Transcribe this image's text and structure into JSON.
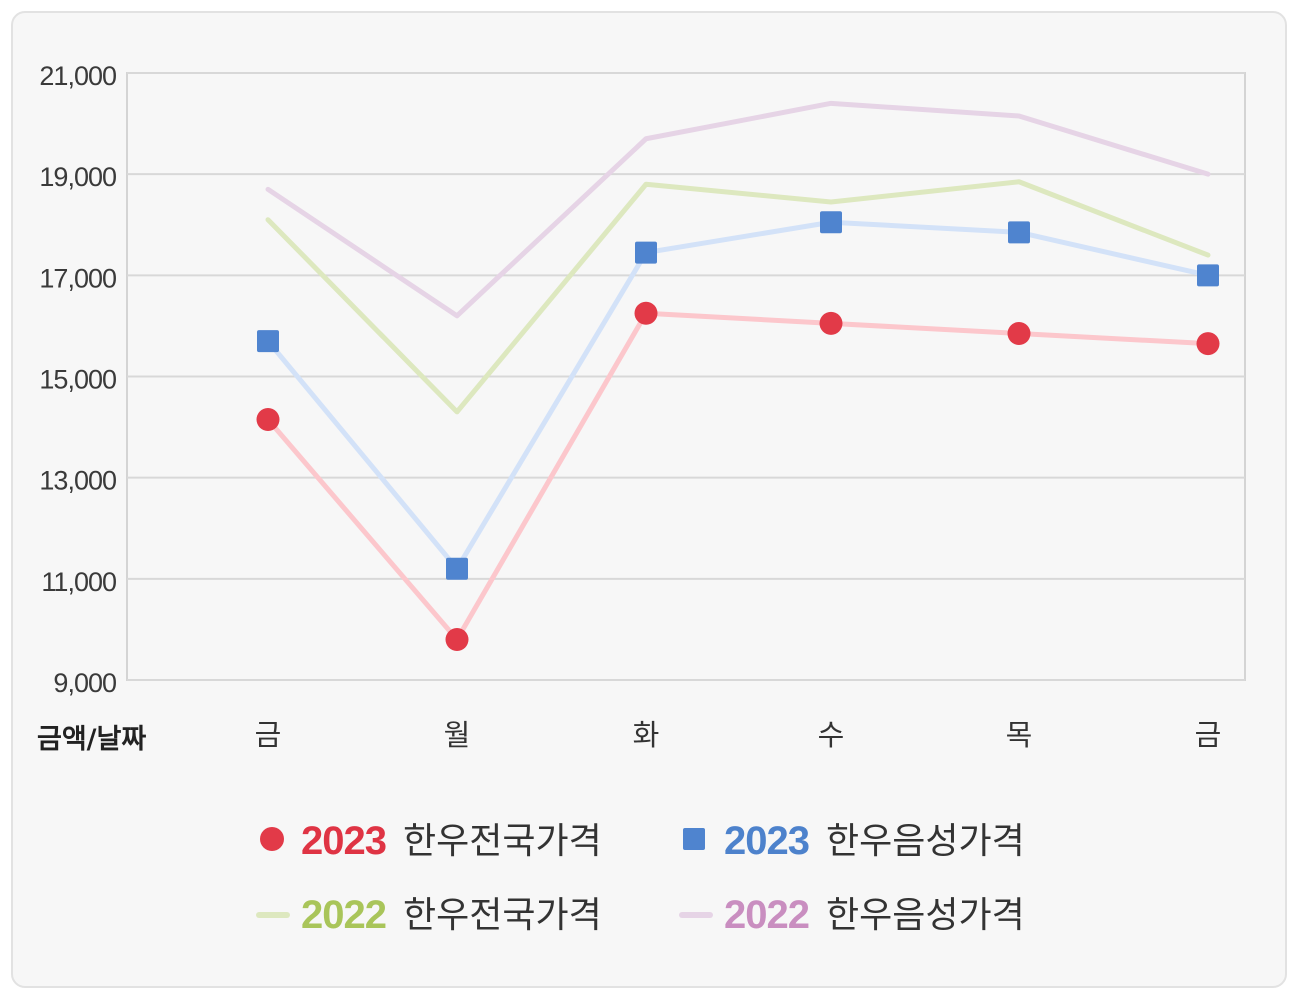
{
  "chart_data": {
    "type": "line",
    "title": "",
    "xlabel": "금액/날짜",
    "ylabel": "",
    "categories": [
      "금",
      "월",
      "화",
      "수",
      "목",
      "금"
    ],
    "ylim": [
      9000,
      21000
    ],
    "yticks": [
      9000,
      11000,
      13000,
      15000,
      17000,
      19000,
      21000
    ],
    "ytick_labels": [
      "9,000",
      "11,000",
      "13,000",
      "15,000",
      "17,000",
      "19,000",
      "21,000"
    ],
    "grid": true,
    "legend_position": "bottom",
    "series": [
      {
        "year": "2022",
        "label": "한우음성가격",
        "name": "2022 한우음성가격",
        "color": "#e6d4e6",
        "legend_color": "#c98ec0",
        "marker": "none",
        "values": [
          18700,
          16200,
          19700,
          20400,
          20150,
          19000
        ]
      },
      {
        "year": "2022",
        "label": "한우전국가격",
        "name": "2022 한우전국가격",
        "color": "#dde8bf",
        "legend_color": "#a9c55a",
        "marker": "none",
        "values": [
          18100,
          14300,
          18800,
          18450,
          18850,
          17400
        ]
      },
      {
        "year": "2023",
        "label": "한우음성가격",
        "name": "2023 한우음성가격",
        "color": "#d3e2f8",
        "legend_color": "#4d82cc",
        "marker": "square",
        "marker_color": "#4f84cf",
        "values": [
          15700,
          11200,
          17450,
          18050,
          17850,
          17000
        ]
      },
      {
        "year": "2023",
        "label": "한우전국가격",
        "name": "2023 한우전국가격",
        "color": "#fcc7cc",
        "legend_color": "#df3444",
        "marker": "circle",
        "marker_color": "#e23a48",
        "values": [
          14150,
          9800,
          16250,
          16050,
          15850,
          15650
        ]
      }
    ],
    "legend_order": [
      3,
      2,
      1,
      0
    ]
  }
}
